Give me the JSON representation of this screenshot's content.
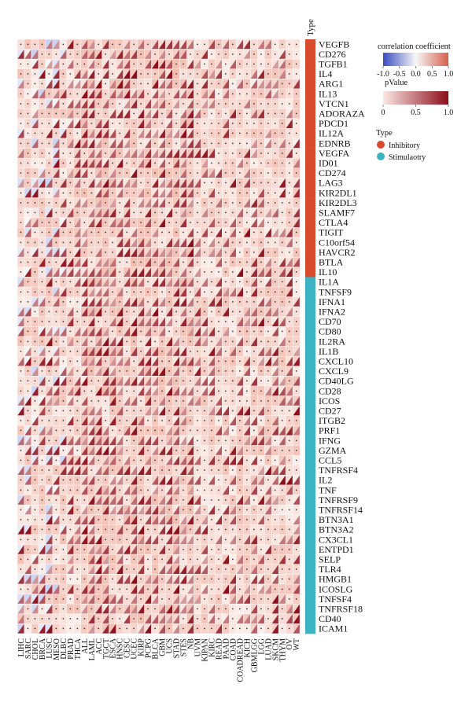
{
  "chart_data": {
    "type": "heatmap",
    "title": "",
    "column_header": "Type",
    "cancers": [
      "LIHC",
      "SARC",
      "CHOL",
      "BRCA",
      "LUSC",
      "MESO",
      "DLBC",
      "PRAD",
      "THCA",
      "ALL",
      "LAML",
      "ACC",
      "TGCT",
      "ESCA",
      "HNSC",
      "CESC",
      "UCEC",
      "KIRP",
      "PCPG",
      "BLCA",
      "GBM",
      "UCS",
      "STAD",
      "STES",
      "NB",
      "UVM",
      "KIPAN",
      "KIRC",
      "READ",
      "PAAD",
      "COAD",
      "COADREAD",
      "KICH",
      "GBMLGG",
      "LGG",
      "LUAD",
      "SKCM",
      "THYM",
      "OV",
      "WT"
    ],
    "genes": [
      "VEGFB",
      "CD276",
      "TGFB1",
      "IL4",
      "ARG1",
      "IL13",
      "VTCN1",
      "ADORAZA",
      "PDCD1",
      "IL12A",
      "EDNRB",
      "VEGFA",
      "ID01",
      "CD274",
      "LAG3",
      "KIR2DL1",
      "KIR2DL3",
      "SLAMF7",
      "CTLA4",
      "TIGIT",
      "C10orf54",
      "HAVCR2",
      "BTLA",
      "IL10",
      "IL1A",
      "TNFSF9",
      "IFNA1",
      "IFNA2",
      "CD70",
      "CD80",
      "IL2RA",
      "IL1B",
      "CXCL10",
      "CXCL9",
      "CD40LG",
      "CD28",
      "ICOS",
      "CD27",
      "ITGB2",
      "PRF1",
      "IFNG",
      "GZMA",
      "CCL5",
      "TNFRSF4",
      "IL2",
      "TNF",
      "TNFRSF9",
      "TNFRSF14",
      "BTN3A1",
      "BTN3A2",
      "CX3CL1",
      "ENTPD1",
      "SELP",
      "TLR4",
      "HMGB1",
      "ICOSLG",
      "TNFSF4",
      "TNFRSF18",
      "CD40",
      "ICAM1"
    ],
    "gene_types": [
      "Inhibitory",
      "Inhibitory",
      "Inhibitory",
      "Inhibitory",
      "Inhibitory",
      "Inhibitory",
      "Inhibitory",
      "Inhibitory",
      "Inhibitory",
      "Inhibitory",
      "Inhibitory",
      "Inhibitory",
      "Inhibitory",
      "Inhibitory",
      "Inhibitory",
      "Inhibitory",
      "Inhibitory",
      "Inhibitory",
      "Inhibitory",
      "Inhibitory",
      "Inhibitory",
      "Inhibitory",
      "Inhibitory",
      "Inhibitory",
      "Stimulaotry",
      "Stimulaotry",
      "Stimulaotry",
      "Stimulaotry",
      "Stimulaotry",
      "Stimulaotry",
      "Stimulaotry",
      "Stimulaotry",
      "Stimulaotry",
      "Stimulaotry",
      "Stimulaotry",
      "Stimulaotry",
      "Stimulaotry",
      "Stimulaotry",
      "Stimulaotry",
      "Stimulaotry",
      "Stimulaotry",
      "Stimulaotry",
      "Stimulaotry",
      "Stimulaotry",
      "Stimulaotry",
      "Stimulaotry",
      "Stimulaotry",
      "Stimulaotry",
      "Stimulaotry",
      "Stimulaotry",
      "Stimulaotry",
      "Stimulaotry",
      "Stimulaotry",
      "Stimulaotry",
      "Stimulaotry",
      "Stimulaotry",
      "Stimulaotry",
      "Stimulaotry",
      "Stimulaotry",
      "Stimulaotry"
    ],
    "legend": {
      "correlation": {
        "title": "correlation coefficient",
        "ticks": [
          "-1.0",
          "-0.5",
          "0.0",
          "0.5",
          "1.0"
        ],
        "low_color": "#3b4cc0",
        "mid_color": "#f7f7f7",
        "high_color": "#d6604d"
      },
      "pvalue": {
        "title": "pValue",
        "ticks": [
          "0",
          "0.5",
          "1.0"
        ],
        "low_color": "#fbe7e3",
        "high_color": "#8b0d1a"
      },
      "type": {
        "title": "Type",
        "items": [
          {
            "name": "Inhibitory",
            "color": "#d84b2c"
          },
          {
            "name": "Stimulaotry",
            "color": "#3bb3c3"
          }
        ]
      }
    },
    "cell_marker": "•",
    "grid": false
  }
}
